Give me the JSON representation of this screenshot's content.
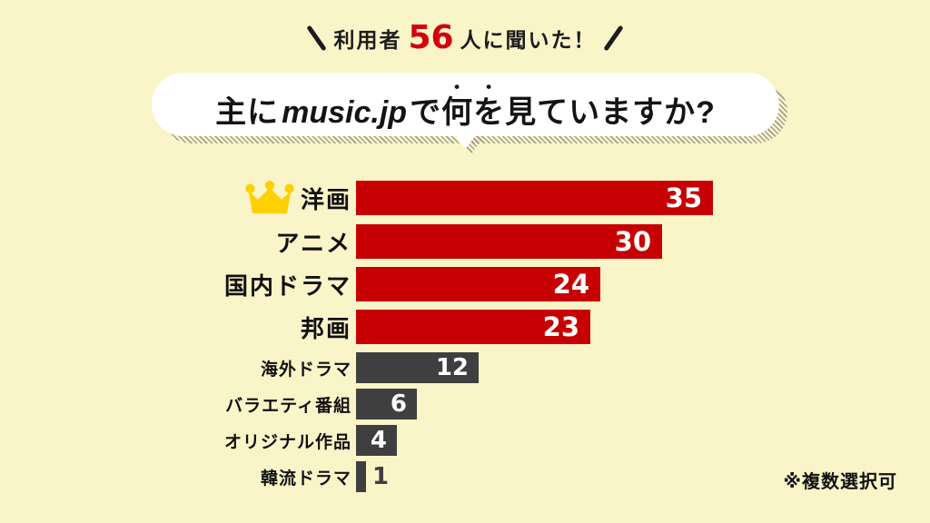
{
  "badge": {
    "prefix": "利用者",
    "count": "56",
    "suffix": "人に聞いた！"
  },
  "title": {
    "pre": "主に",
    "brand": "music.jp",
    "mid": "で",
    "emphasis": "何を",
    "post": "見ていますか?"
  },
  "footnote": "※複数選択可",
  "colors": {
    "background": "#faf5c9",
    "bar_red": "#c70003",
    "bar_gray": "#3f3f3f",
    "count_red": "#d2000d",
    "crown_gold": "#fdd000",
    "text_black": "#1c1c1c",
    "bubble_white": "#ffffff",
    "hatch_gray": "#a49d92"
  },
  "chart_data": {
    "type": "bar",
    "orientation": "horizontal",
    "title": "主にmusic.jpで何を見ていますか?",
    "subtitle": "利用者56人に聞いた！",
    "sample_size": 56,
    "annotation": "※複数選択可",
    "xlabel": "",
    "ylabel": "",
    "xlim": [
      0,
      35
    ],
    "grid": false,
    "legend": false,
    "categories": [
      "洋画",
      "アニメ",
      "国内ドラマ",
      "邦画",
      "海外ドラマ",
      "バラエティ番組",
      "オリジナル作品",
      "韓流ドラマ"
    ],
    "values": [
      35,
      30,
      24,
      23,
      12,
      6,
      4,
      1
    ],
    "bars": [
      {
        "label": "洋画",
        "value": 35,
        "color": "#c70003",
        "size": "large",
        "crown": true,
        "value_inside": true
      },
      {
        "label": "アニメ",
        "value": 30,
        "color": "#c70003",
        "size": "large",
        "crown": false,
        "value_inside": true
      },
      {
        "label": "国内ドラマ",
        "value": 24,
        "color": "#c70003",
        "size": "large",
        "crown": false,
        "value_inside": true
      },
      {
        "label": "邦画",
        "value": 23,
        "color": "#c70003",
        "size": "large",
        "crown": false,
        "value_inside": true
      },
      {
        "label": "海外ドラマ",
        "value": 12,
        "color": "#3f3f3f",
        "size": "small",
        "crown": false,
        "value_inside": true
      },
      {
        "label": "バラエティ番組",
        "value": 6,
        "color": "#3f3f3f",
        "size": "small",
        "crown": false,
        "value_inside": true
      },
      {
        "label": "オリジナル作品",
        "value": 4,
        "color": "#3f3f3f",
        "size": "small",
        "crown": false,
        "value_inside": true
      },
      {
        "label": "韓流ドラマ",
        "value": 1,
        "color": "#3f3f3f",
        "size": "small",
        "crown": false,
        "value_inside": false
      }
    ]
  }
}
